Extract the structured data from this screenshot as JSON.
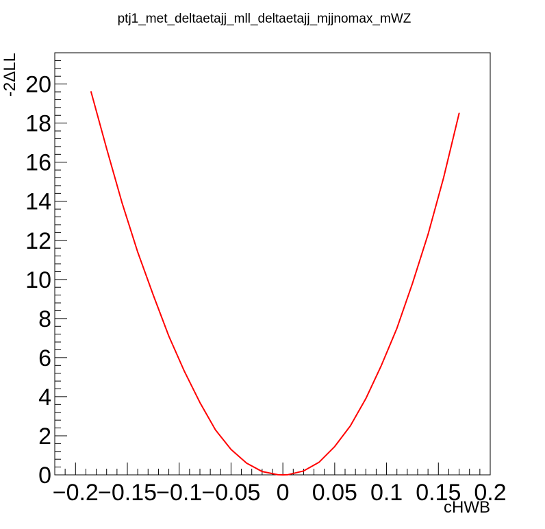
{
  "chart_data": {
    "type": "line",
    "title": "ptj1_met_deltaetajj_mll_deltaetajj_mjjnomax_mWZ",
    "xlabel": "cHWB",
    "ylabel": "-2ΔLL",
    "xlim": [
      -0.22,
      0.2
    ],
    "ylim": [
      0,
      21.6
    ],
    "xticks": [
      -0.2,
      -0.15,
      -0.1,
      -0.05,
      0,
      0.05,
      0.1,
      0.15,
      0.2
    ],
    "xtick_labels": [
      "−0.2",
      "−0.15",
      "−0.1",
      "−0.05",
      "0",
      "0.05",
      "0.1",
      "0.15",
      "0.2"
    ],
    "yticks": [
      0,
      2,
      4,
      6,
      8,
      10,
      12,
      14,
      16,
      18,
      20
    ],
    "ytick_labels": [
      "0",
      "2",
      "4",
      "6",
      "8",
      "10",
      "12",
      "14",
      "16",
      "18",
      "20"
    ],
    "grid": false,
    "series": [
      {
        "color": "#ff0000",
        "x": [
          -0.185,
          -0.17,
          -0.155,
          -0.14,
          -0.125,
          -0.11,
          -0.095,
          -0.08,
          -0.065,
          -0.05,
          -0.035,
          -0.02,
          -0.005,
          0,
          0.005,
          0.02,
          0.035,
          0.05,
          0.065,
          0.08,
          0.095,
          0.11,
          0.125,
          0.14,
          0.155,
          0.17
        ],
        "y": [
          19.6,
          16.7,
          13.9,
          11.4,
          9.2,
          7.1,
          5.3,
          3.7,
          2.3,
          1.3,
          0.6,
          0.17,
          0.01,
          0,
          0.01,
          0.2,
          0.65,
          1.45,
          2.5,
          3.9,
          5.6,
          7.5,
          9.8,
          12.3,
          15.2,
          18.5
        ]
      }
    ]
  }
}
